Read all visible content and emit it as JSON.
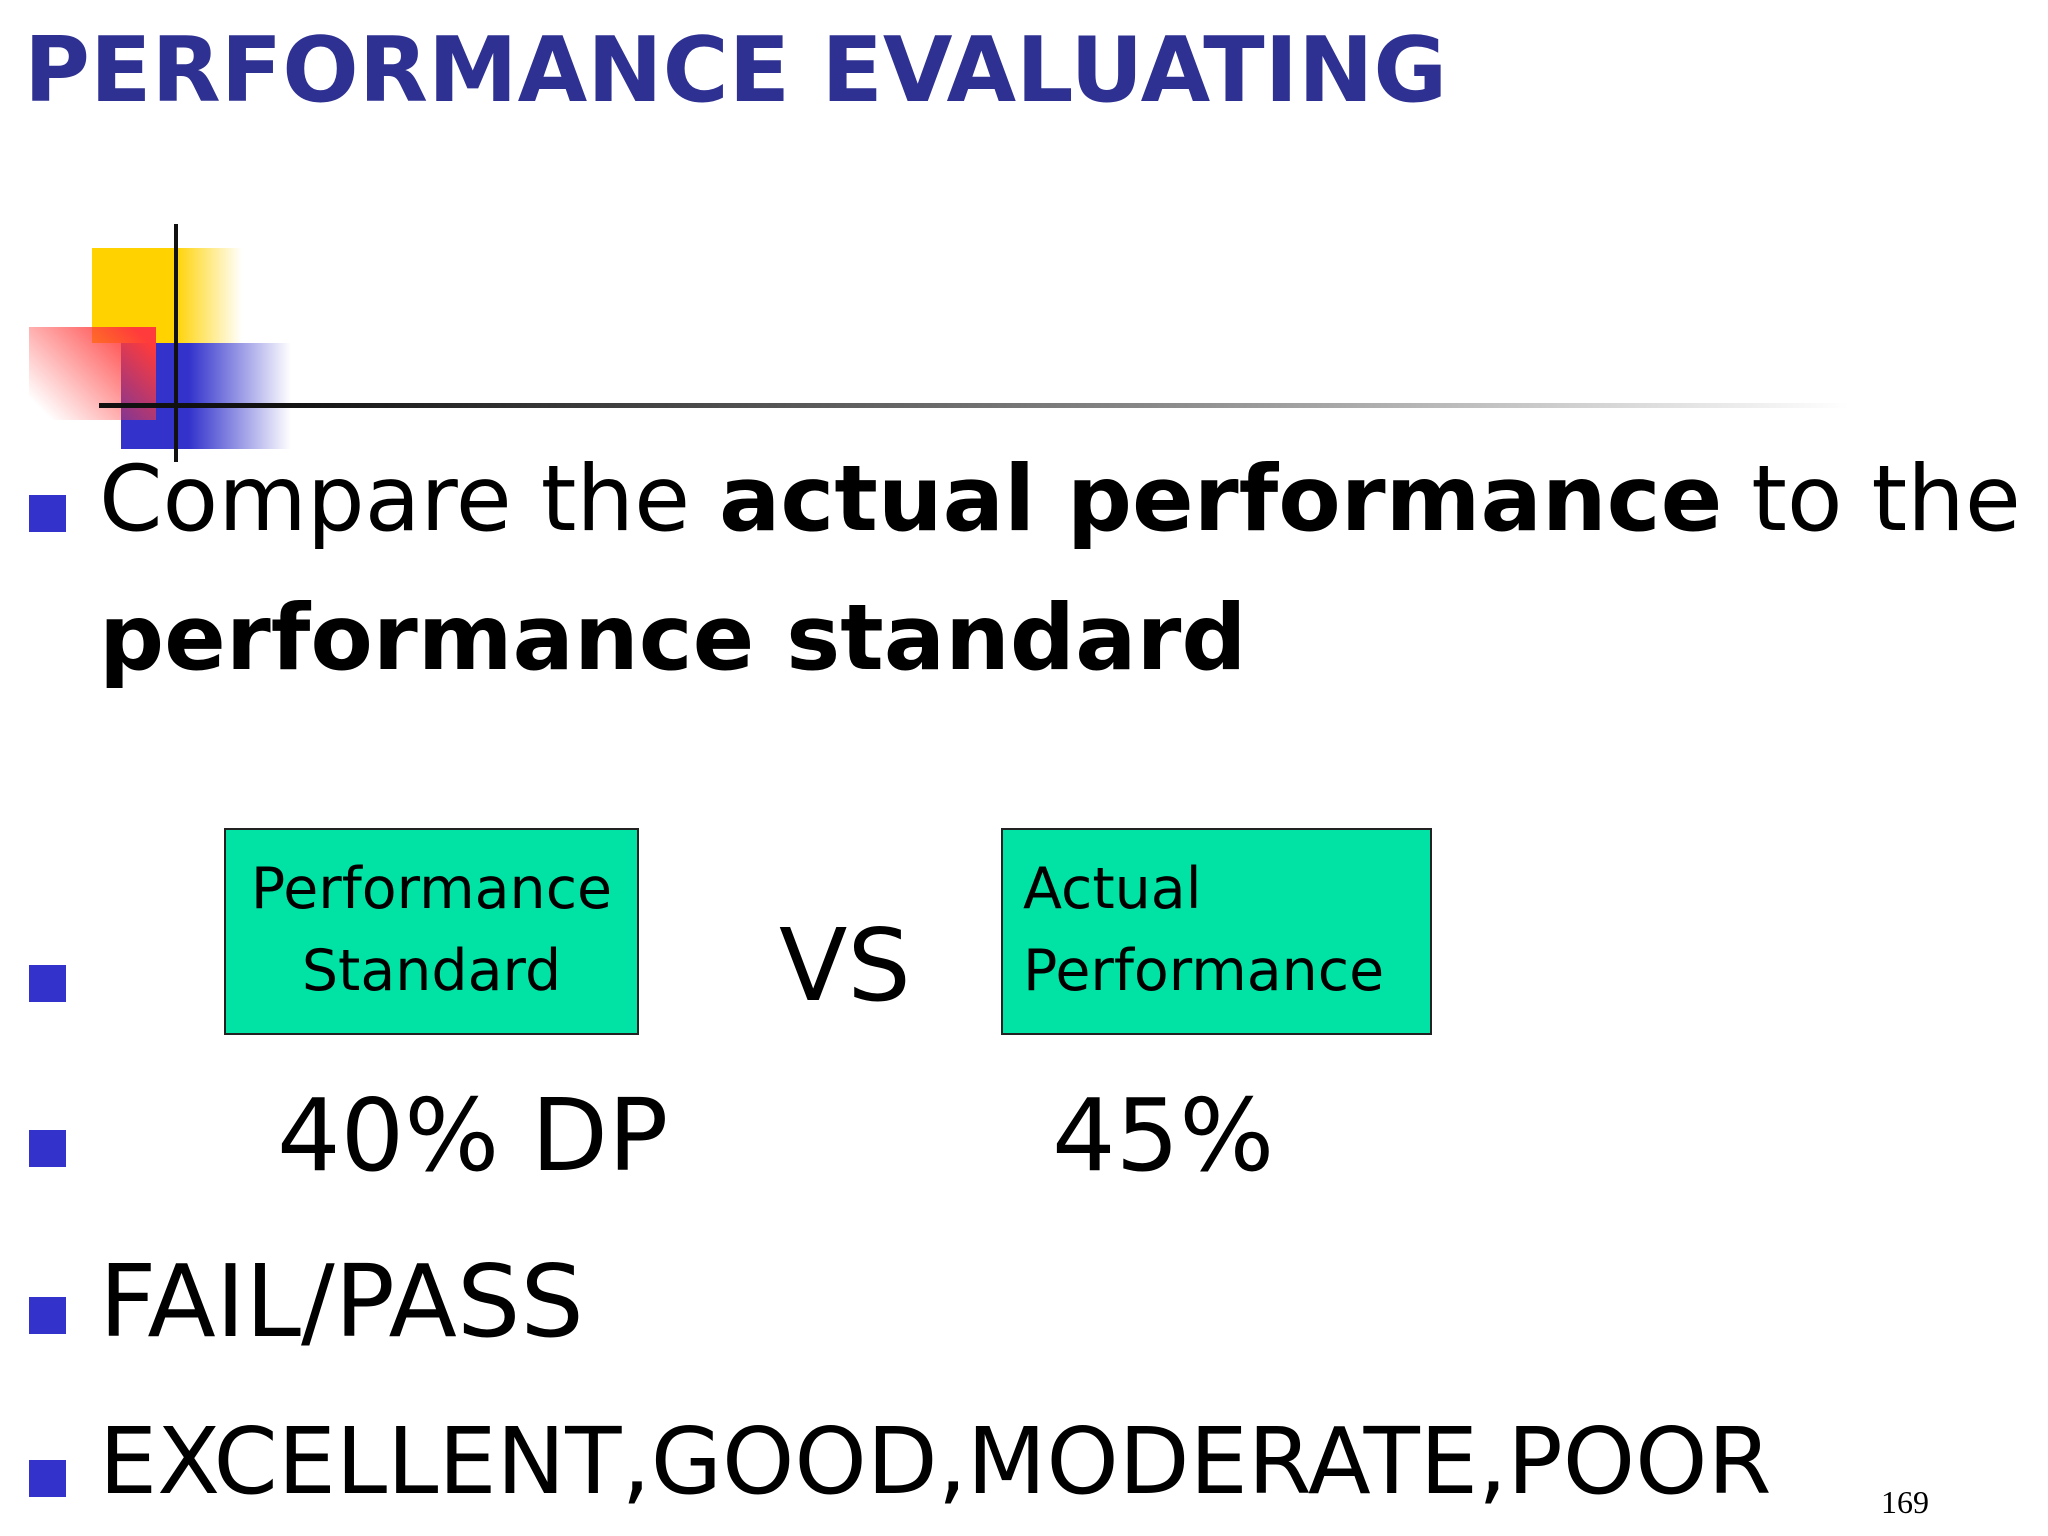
{
  "title": "PERFORMANCE EVALUATING",
  "intro": [
    "Compare the ",
    "actual performance",
    " to the ",
    "performance standard"
  ],
  "comparison": {
    "standard_box": "Performance Standard",
    "vs": "VS",
    "actual_box": "Actual Performance",
    "standard_value": "40% DP",
    "actual_value": "45%"
  },
  "outcomes": [
    "FAIL/PASS",
    "EXCELLENT,GOOD,MODERATE,POOR"
  ],
  "page_number": "169"
}
